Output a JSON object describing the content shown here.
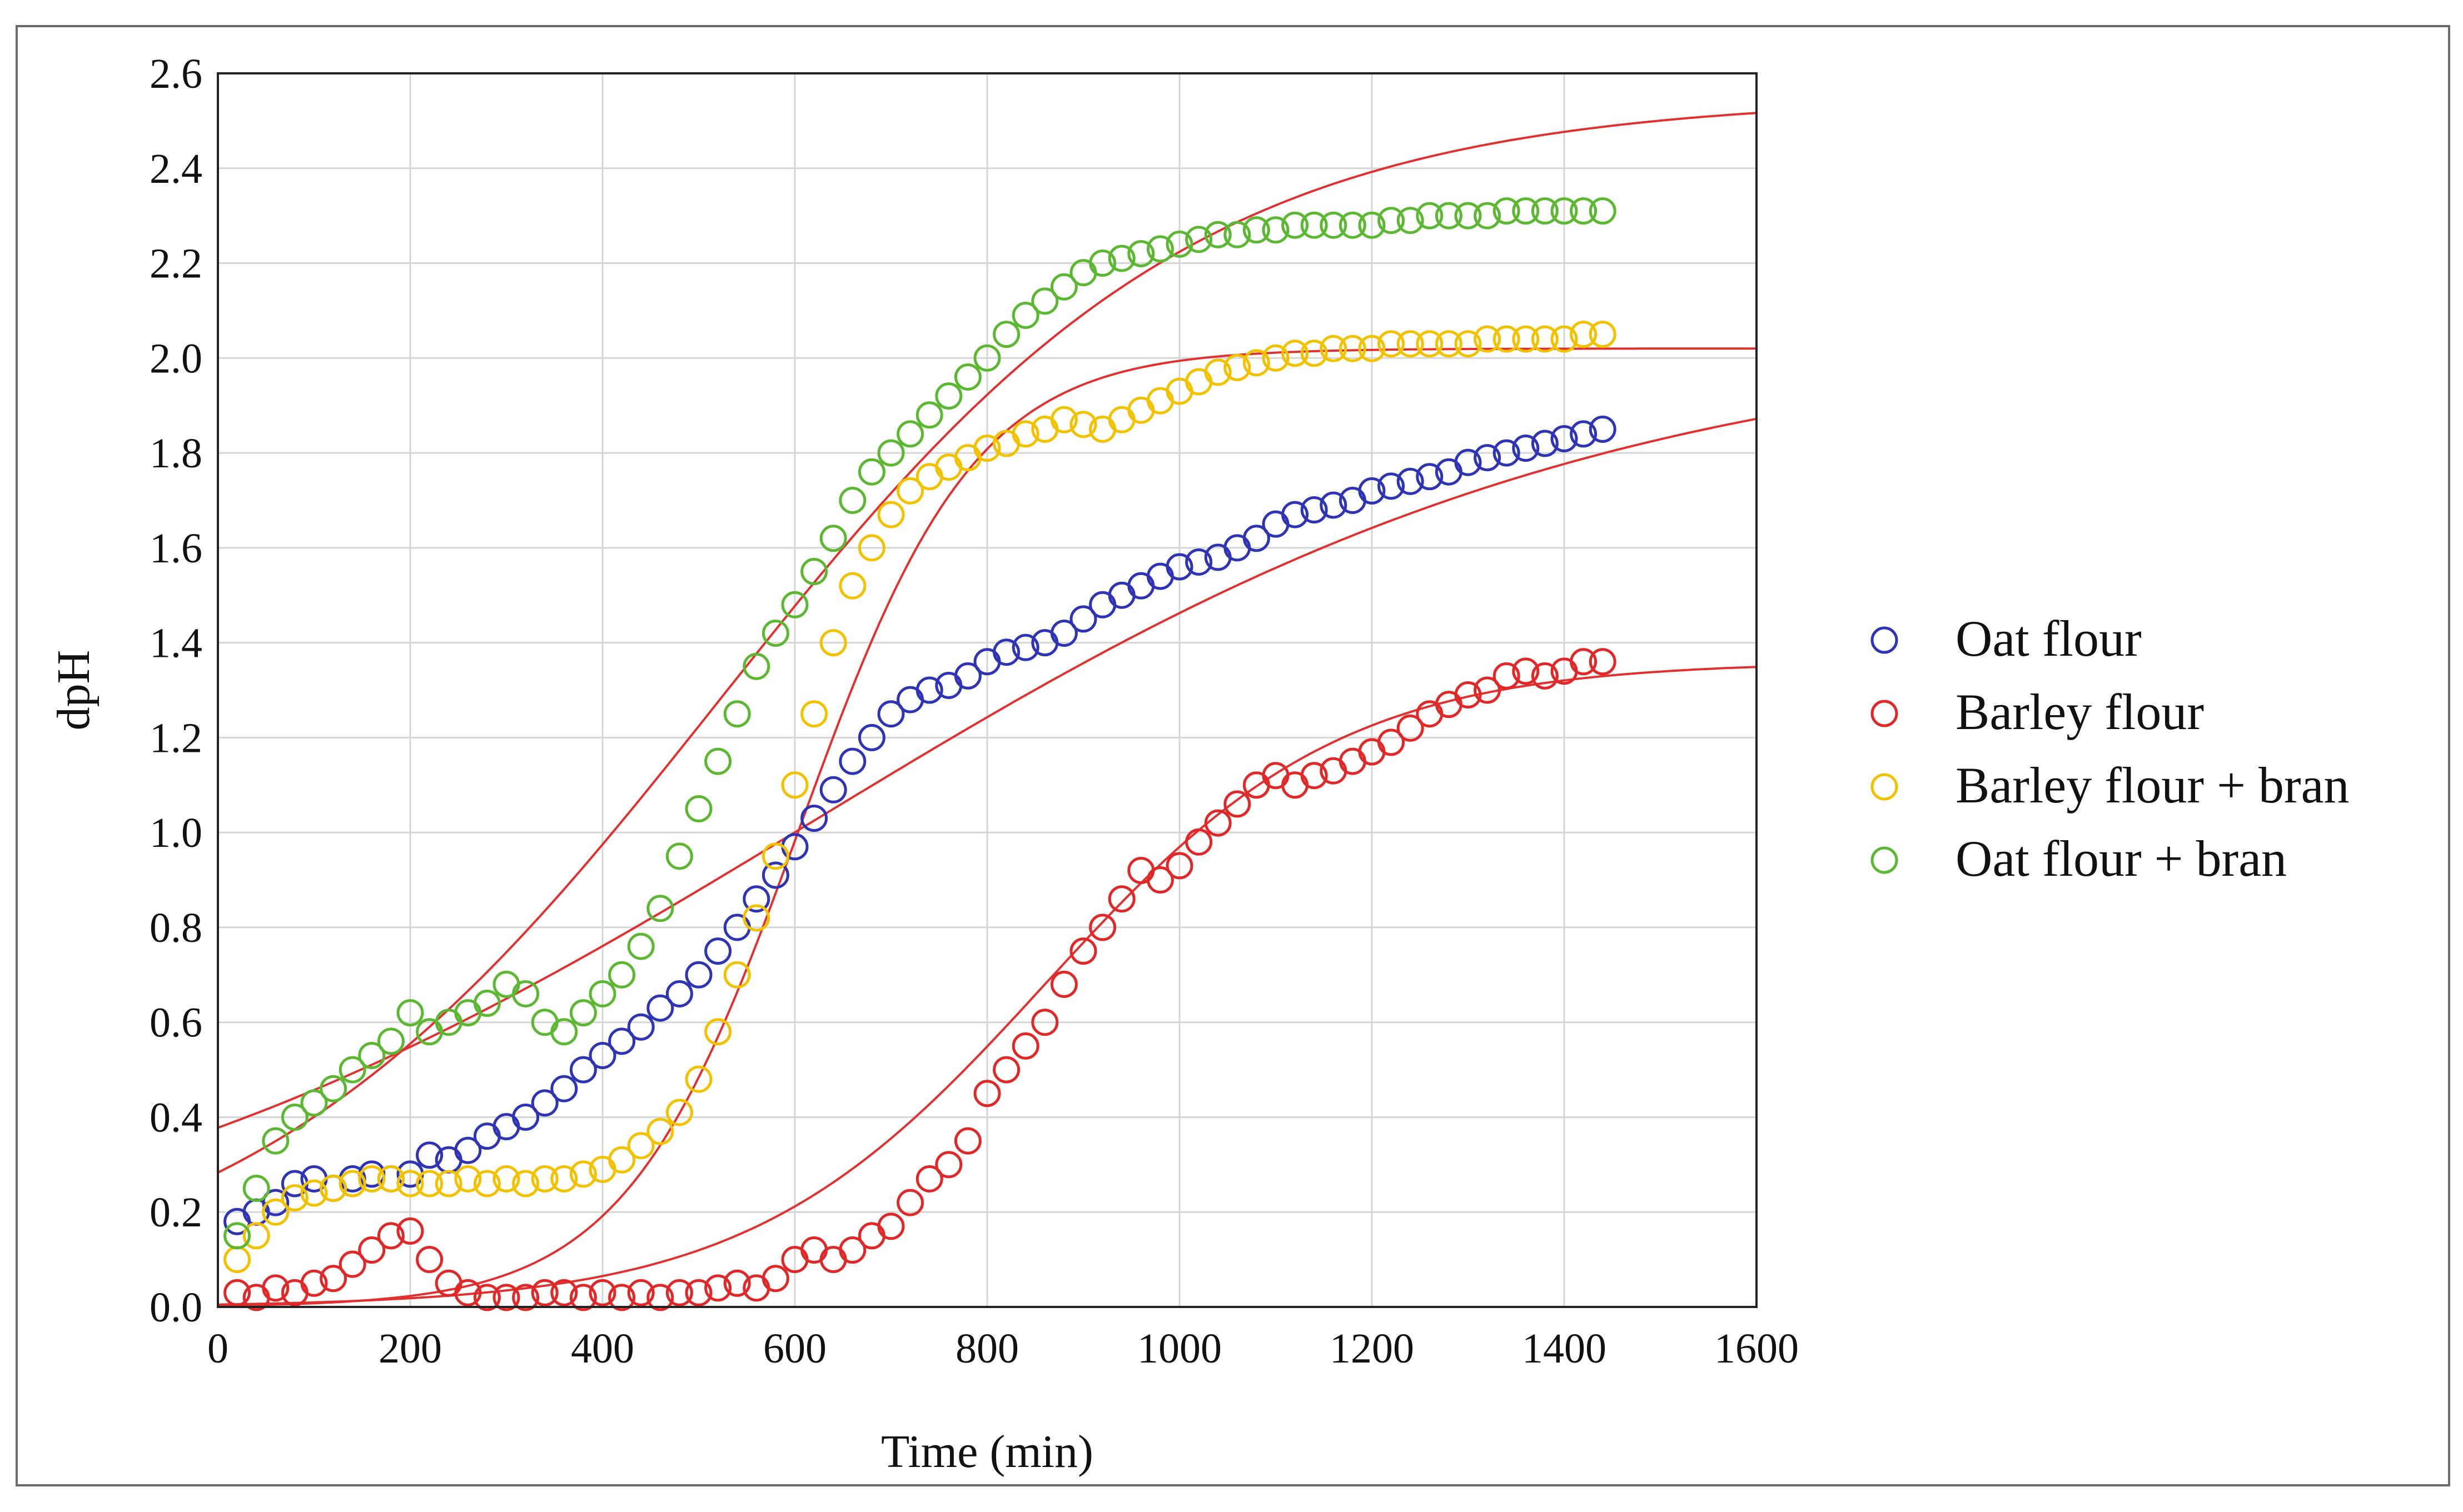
{
  "chart_data": {
    "type": "scatter",
    "title": "",
    "xlabel": "Time (min)",
    "ylabel": "dpH",
    "xlim": [
      0,
      1600
    ],
    "ylim": [
      0,
      2.6
    ],
    "xticks": [
      0,
      200,
      400,
      600,
      800,
      1000,
      1200,
      1400,
      1600
    ],
    "yticks": [
      0.0,
      0.2,
      0.4,
      0.6,
      0.8,
      1.0,
      1.2,
      1.4,
      1.6,
      1.8,
      2.0,
      2.2,
      2.4,
      2.6
    ],
    "grid": true,
    "legend_position": "right",
    "fit_color": "#e03030",
    "series": [
      {
        "name": "Oat flour",
        "color": "#2e34b4",
        "points": [
          [
            20,
            0.18
          ],
          [
            40,
            0.2
          ],
          [
            60,
            0.22
          ],
          [
            80,
            0.26
          ],
          [
            100,
            0.27
          ],
          [
            120,
            0.25
          ],
          [
            140,
            0.27
          ],
          [
            160,
            0.28
          ],
          [
            180,
            0.27
          ],
          [
            200,
            0.28
          ],
          [
            220,
            0.32
          ],
          [
            240,
            0.31
          ],
          [
            260,
            0.33
          ],
          [
            280,
            0.36
          ],
          [
            300,
            0.38
          ],
          [
            320,
            0.4
          ],
          [
            340,
            0.43
          ],
          [
            360,
            0.46
          ],
          [
            380,
            0.5
          ],
          [
            400,
            0.53
          ],
          [
            420,
            0.56
          ],
          [
            440,
            0.59
          ],
          [
            460,
            0.63
          ],
          [
            480,
            0.66
          ],
          [
            500,
            0.7
          ],
          [
            520,
            0.75
          ],
          [
            540,
            0.8
          ],
          [
            560,
            0.86
          ],
          [
            580,
            0.91
          ],
          [
            600,
            0.97
          ],
          [
            620,
            1.03
          ],
          [
            640,
            1.09
          ],
          [
            660,
            1.15
          ],
          [
            680,
            1.2
          ],
          [
            700,
            1.25
          ],
          [
            720,
            1.28
          ],
          [
            740,
            1.3
          ],
          [
            760,
            1.31
          ],
          [
            780,
            1.33
          ],
          [
            800,
            1.36
          ],
          [
            820,
            1.38
          ],
          [
            840,
            1.39
          ],
          [
            860,
            1.4
          ],
          [
            880,
            1.42
          ],
          [
            900,
            1.45
          ],
          [
            920,
            1.48
          ],
          [
            940,
            1.5
          ],
          [
            960,
            1.52
          ],
          [
            980,
            1.54
          ],
          [
            1000,
            1.56
          ],
          [
            1020,
            1.57
          ],
          [
            1040,
            1.58
          ],
          [
            1060,
            1.6
          ],
          [
            1080,
            1.62
          ],
          [
            1100,
            1.65
          ],
          [
            1120,
            1.67
          ],
          [
            1140,
            1.68
          ],
          [
            1160,
            1.69
          ],
          [
            1180,
            1.7
          ],
          [
            1200,
            1.72
          ],
          [
            1220,
            1.73
          ],
          [
            1240,
            1.74
          ],
          [
            1260,
            1.75
          ],
          [
            1280,
            1.76
          ],
          [
            1300,
            1.78
          ],
          [
            1320,
            1.79
          ],
          [
            1340,
            1.8
          ],
          [
            1360,
            1.81
          ],
          [
            1380,
            1.82
          ],
          [
            1400,
            1.83
          ],
          [
            1420,
            1.84
          ],
          [
            1440,
            1.85
          ]
        ],
        "fit": {
          "A": 2.05,
          "k": 0.0024,
          "t0": 620
        }
      },
      {
        "name": "Barley flour",
        "color": "#e02828",
        "points": [
          [
            20,
            0.03
          ],
          [
            40,
            0.02
          ],
          [
            60,
            0.04
          ],
          [
            80,
            0.03
          ],
          [
            100,
            0.05
          ],
          [
            120,
            0.06
          ],
          [
            140,
            0.09
          ],
          [
            160,
            0.12
          ],
          [
            180,
            0.15
          ],
          [
            200,
            0.16
          ],
          [
            220,
            0.1
          ],
          [
            240,
            0.05
          ],
          [
            260,
            0.03
          ],
          [
            280,
            0.02
          ],
          [
            300,
            0.02
          ],
          [
            320,
            0.02
          ],
          [
            340,
            0.03
          ],
          [
            360,
            0.03
          ],
          [
            380,
            0.02
          ],
          [
            400,
            0.03
          ],
          [
            420,
            0.02
          ],
          [
            440,
            0.03
          ],
          [
            460,
            0.02
          ],
          [
            480,
            0.03
          ],
          [
            500,
            0.03
          ],
          [
            520,
            0.04
          ],
          [
            540,
            0.05
          ],
          [
            560,
            0.04
          ],
          [
            580,
            0.06
          ],
          [
            600,
            0.1
          ],
          [
            620,
            0.12
          ],
          [
            640,
            0.1
          ],
          [
            660,
            0.12
          ],
          [
            680,
            0.15
          ],
          [
            700,
            0.17
          ],
          [
            720,
            0.22
          ],
          [
            740,
            0.27
          ],
          [
            760,
            0.3
          ],
          [
            780,
            0.35
          ],
          [
            800,
            0.45
          ],
          [
            820,
            0.5
          ],
          [
            840,
            0.55
          ],
          [
            860,
            0.6
          ],
          [
            880,
            0.68
          ],
          [
            900,
            0.75
          ],
          [
            920,
            0.8
          ],
          [
            940,
            0.86
          ],
          [
            960,
            0.92
          ],
          [
            980,
            0.9
          ],
          [
            1000,
            0.93
          ],
          [
            1020,
            0.98
          ],
          [
            1040,
            1.02
          ],
          [
            1060,
            1.06
          ],
          [
            1080,
            1.1
          ],
          [
            1100,
            1.12
          ],
          [
            1120,
            1.1
          ],
          [
            1140,
            1.12
          ],
          [
            1160,
            1.13
          ],
          [
            1180,
            1.15
          ],
          [
            1200,
            1.17
          ],
          [
            1220,
            1.19
          ],
          [
            1240,
            1.22
          ],
          [
            1260,
            1.25
          ],
          [
            1280,
            1.27
          ],
          [
            1300,
            1.29
          ],
          [
            1320,
            1.3
          ],
          [
            1340,
            1.33
          ],
          [
            1360,
            1.34
          ],
          [
            1380,
            1.33
          ],
          [
            1400,
            1.34
          ],
          [
            1420,
            1.36
          ],
          [
            1440,
            1.36
          ]
        ],
        "fit": {
          "A": 1.36,
          "k": 0.0065,
          "t0": 860
        }
      },
      {
        "name": "Barley flour + bran",
        "color": "#f2c200",
        "points": [
          [
            20,
            0.1
          ],
          [
            40,
            0.15
          ],
          [
            60,
            0.2
          ],
          [
            80,
            0.23
          ],
          [
            100,
            0.24
          ],
          [
            120,
            0.25
          ],
          [
            140,
            0.26
          ],
          [
            160,
            0.27
          ],
          [
            180,
            0.27
          ],
          [
            200,
            0.26
          ],
          [
            220,
            0.26
          ],
          [
            240,
            0.26
          ],
          [
            260,
            0.27
          ],
          [
            280,
            0.26
          ],
          [
            300,
            0.27
          ],
          [
            320,
            0.26
          ],
          [
            340,
            0.27
          ],
          [
            360,
            0.27
          ],
          [
            380,
            0.28
          ],
          [
            400,
            0.29
          ],
          [
            420,
            0.31
          ],
          [
            440,
            0.34
          ],
          [
            460,
            0.37
          ],
          [
            480,
            0.41
          ],
          [
            500,
            0.48
          ],
          [
            520,
            0.58
          ],
          [
            540,
            0.7
          ],
          [
            560,
            0.82
          ],
          [
            580,
            0.95
          ],
          [
            600,
            1.1
          ],
          [
            620,
            1.25
          ],
          [
            640,
            1.4
          ],
          [
            660,
            1.52
          ],
          [
            680,
            1.6
          ],
          [
            700,
            1.67
          ],
          [
            720,
            1.72
          ],
          [
            740,
            1.75
          ],
          [
            760,
            1.77
          ],
          [
            780,
            1.79
          ],
          [
            800,
            1.81
          ],
          [
            820,
            1.82
          ],
          [
            840,
            1.84
          ],
          [
            860,
            1.85
          ],
          [
            880,
            1.87
          ],
          [
            900,
            1.86
          ],
          [
            920,
            1.85
          ],
          [
            940,
            1.87
          ],
          [
            960,
            1.89
          ],
          [
            980,
            1.91
          ],
          [
            1000,
            1.93
          ],
          [
            1020,
            1.95
          ],
          [
            1040,
            1.97
          ],
          [
            1060,
            1.98
          ],
          [
            1080,
            1.99
          ],
          [
            1100,
            2.0
          ],
          [
            1120,
            2.01
          ],
          [
            1140,
            2.01
          ],
          [
            1160,
            2.02
          ],
          [
            1180,
            2.02
          ],
          [
            1200,
            2.02
          ],
          [
            1220,
            2.03
          ],
          [
            1240,
            2.03
          ],
          [
            1260,
            2.03
          ],
          [
            1280,
            2.03
          ],
          [
            1300,
            2.03
          ],
          [
            1320,
            2.04
          ],
          [
            1340,
            2.04
          ],
          [
            1360,
            2.04
          ],
          [
            1380,
            2.04
          ],
          [
            1400,
            2.04
          ],
          [
            1420,
            2.05
          ],
          [
            1440,
            2.05
          ]
        ],
        "fit": {
          "A": 2.02,
          "k": 0.011,
          "t0": 605
        }
      },
      {
        "name": "Oat flour + bran",
        "color": "#5cb832",
        "points": [
          [
            20,
            0.15
          ],
          [
            40,
            0.25
          ],
          [
            60,
            0.35
          ],
          [
            80,
            0.4
          ],
          [
            100,
            0.43
          ],
          [
            120,
            0.46
          ],
          [
            140,
            0.5
          ],
          [
            160,
            0.53
          ],
          [
            180,
            0.56
          ],
          [
            200,
            0.62
          ],
          [
            220,
            0.58
          ],
          [
            240,
            0.6
          ],
          [
            260,
            0.62
          ],
          [
            280,
            0.64
          ],
          [
            300,
            0.68
          ],
          [
            320,
            0.66
          ],
          [
            340,
            0.6
          ],
          [
            360,
            0.58
          ],
          [
            380,
            0.62
          ],
          [
            400,
            0.66
          ],
          [
            420,
            0.7
          ],
          [
            440,
            0.76
          ],
          [
            460,
            0.84
          ],
          [
            480,
            0.95
          ],
          [
            500,
            1.05
          ],
          [
            520,
            1.15
          ],
          [
            540,
            1.25
          ],
          [
            560,
            1.35
          ],
          [
            580,
            1.42
          ],
          [
            600,
            1.48
          ],
          [
            620,
            1.55
          ],
          [
            640,
            1.62
          ],
          [
            660,
            1.7
          ],
          [
            680,
            1.76
          ],
          [
            700,
            1.8
          ],
          [
            720,
            1.84
          ],
          [
            740,
            1.88
          ],
          [
            760,
            1.92
          ],
          [
            780,
            1.96
          ],
          [
            800,
            2.0
          ],
          [
            820,
            2.05
          ],
          [
            840,
            2.09
          ],
          [
            860,
            2.12
          ],
          [
            880,
            2.15
          ],
          [
            900,
            2.18
          ],
          [
            920,
            2.2
          ],
          [
            940,
            2.21
          ],
          [
            960,
            2.22
          ],
          [
            980,
            2.23
          ],
          [
            1000,
            2.24
          ],
          [
            1020,
            2.25
          ],
          [
            1040,
            2.26
          ],
          [
            1060,
            2.26
          ],
          [
            1080,
            2.27
          ],
          [
            1100,
            2.27
          ],
          [
            1120,
            2.28
          ],
          [
            1140,
            2.28
          ],
          [
            1160,
            2.28
          ],
          [
            1180,
            2.28
          ],
          [
            1200,
            2.28
          ],
          [
            1220,
            2.29
          ],
          [
            1240,
            2.29
          ],
          [
            1260,
            2.3
          ],
          [
            1280,
            2.3
          ],
          [
            1300,
            2.3
          ],
          [
            1320,
            2.3
          ],
          [
            1340,
            2.31
          ],
          [
            1360,
            2.31
          ],
          [
            1380,
            2.31
          ],
          [
            1400,
            2.31
          ],
          [
            1420,
            2.31
          ],
          [
            1440,
            2.31
          ]
        ],
        "fit": {
          "A": 2.55,
          "k": 0.004,
          "t0": 520
        }
      }
    ]
  }
}
